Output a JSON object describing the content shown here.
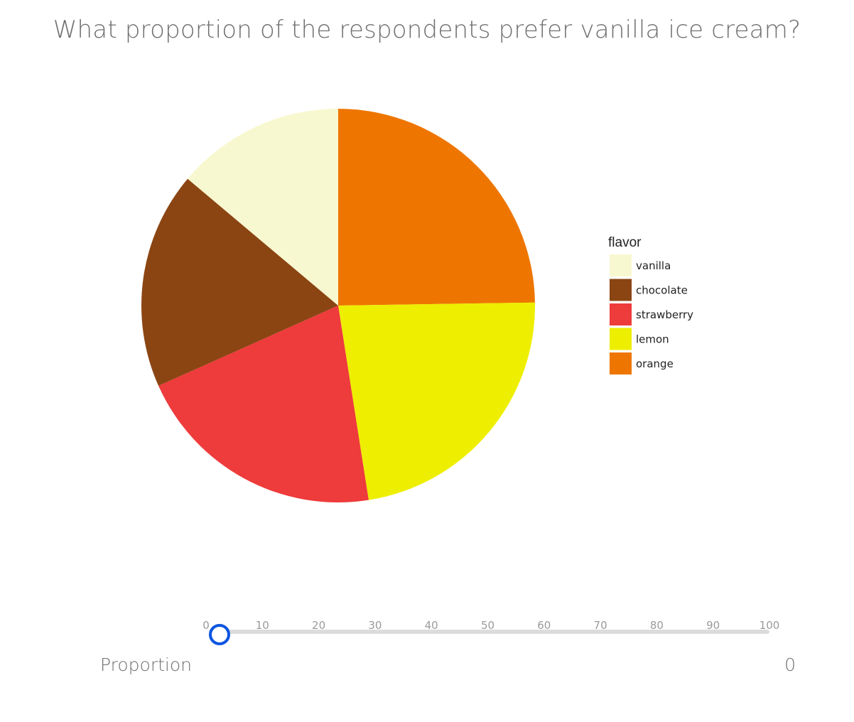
{
  "question": "What proportion of the respondents prefer vanilla ice cream?",
  "chart_data": {
    "type": "pie",
    "legend_title": "flavor",
    "legend_position": "right",
    "slices": [
      {
        "label": "vanilla",
        "value": 14,
        "color": "#f8f8d0"
      },
      {
        "label": "chocolate",
        "value": 18,
        "color": "#8b4513"
      },
      {
        "label": "strawberry",
        "value": 21,
        "color": "#ee3b3b"
      },
      {
        "label": "lemon",
        "value": 23,
        "color": "#eeee00"
      },
      {
        "label": "orange",
        "value": 25,
        "color": "#ee7600"
      }
    ]
  },
  "slider": {
    "ticks": [
      "0",
      "10",
      "20",
      "30",
      "40",
      "50",
      "60",
      "70",
      "80",
      "90",
      "100"
    ],
    "min": 0,
    "max": 100,
    "value": 0,
    "accent_color": "#0b55e0"
  },
  "proportion": {
    "label": "Proportion",
    "value": "0"
  }
}
